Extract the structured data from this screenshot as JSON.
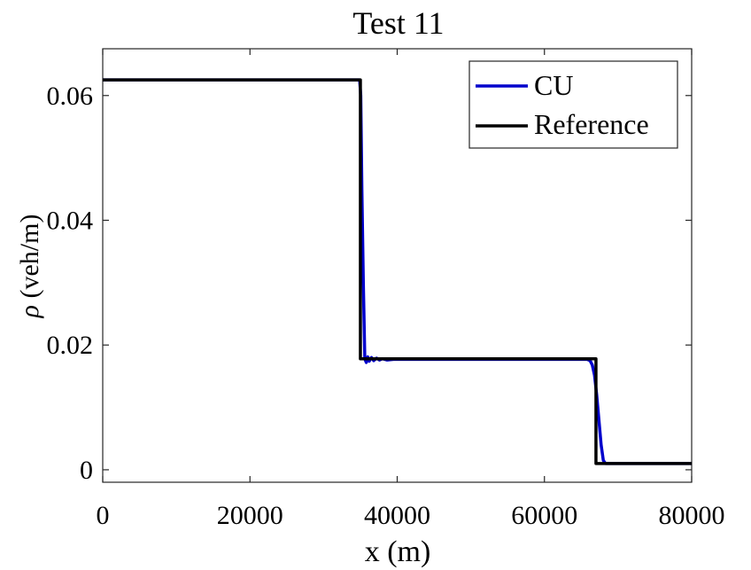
{
  "chart_data": {
    "type": "line",
    "title": "Test 11",
    "xlabel": "x (m)",
    "ylabel_symbol": "ρ",
    "ylabel_units": "(veh/m)",
    "xlim": [
      0,
      80000
    ],
    "ylim": [
      -0.002,
      0.0675
    ],
    "xticks": [
      0,
      20000,
      40000,
      60000,
      80000
    ],
    "xtick_labels": [
      "0",
      "20000",
      "40000",
      "60000",
      "80000"
    ],
    "yticks": [
      0,
      0.02,
      0.04,
      0.06
    ],
    "ytick_labels": [
      "0",
      "0.02",
      "0.04",
      "0.06"
    ],
    "grid": false,
    "legend_position": "top-right",
    "series": [
      {
        "name": "CU",
        "color": "#0000cc",
        "x": [
          0,
          34900,
          35050,
          35200,
          35400,
          35600,
          35800,
          36000,
          36200,
          36500,
          36800,
          37200,
          37600,
          38000,
          38600,
          39500,
          41000,
          65800,
          66200,
          66500,
          66800,
          67100,
          67400,
          67700,
          68000,
          68300,
          80000
        ],
        "y": [
          0.0625,
          0.0625,
          0.06,
          0.045,
          0.03,
          0.0178,
          0.0172,
          0.0181,
          0.0174,
          0.018,
          0.0175,
          0.0179,
          0.0176,
          0.0178,
          0.0176,
          0.0177,
          0.0177,
          0.0177,
          0.0175,
          0.0168,
          0.0152,
          0.012,
          0.008,
          0.004,
          0.0015,
          0.001,
          0.001
        ]
      },
      {
        "name": "Reference",
        "color": "#000000",
        "x": [
          0,
          35000,
          35000,
          67000,
          67000,
          80000
        ],
        "y": [
          0.0625,
          0.0625,
          0.0178,
          0.0178,
          0.001,
          0.001
        ]
      }
    ]
  }
}
